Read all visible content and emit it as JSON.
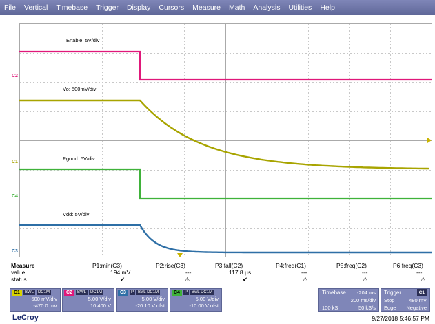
{
  "menu": [
    "File",
    "Vertical",
    "Timebase",
    "Trigger",
    "Display",
    "Cursors",
    "Measure",
    "Math",
    "Analysis",
    "Utilities",
    "Help"
  ],
  "channels": {
    "c1": {
      "marker": "C1",
      "color": "#a8a400",
      "trace_label": "Vo: 500mV/div"
    },
    "c2": {
      "marker": "C2",
      "color": "#e0187a",
      "trace_label": "Enable: 5V/div"
    },
    "c3": {
      "marker": "C3",
      "color": "#2e6fa6",
      "trace_label": "Vdd: 5V/div"
    },
    "c4": {
      "marker": "C4",
      "color": "#3fb23a",
      "trace_label": "Pgood: 5V/div"
    }
  },
  "measure": {
    "title": "Measure",
    "row_value": "value",
    "row_status": "status",
    "params": [
      {
        "name": "P1:min(C3)",
        "value": "194 mV",
        "status": "✔"
      },
      {
        "name": "P2:rise(C3)",
        "value": "---",
        "status": "⚠"
      },
      {
        "name": "P3:fall(C2)",
        "value": "117.8 µs",
        "status": "✔"
      },
      {
        "name": "P4:freq(C1)",
        "value": "---",
        "status": "⚠"
      },
      {
        "name": "P5:freq(C2)",
        "value": "---",
        "status": "⚠"
      },
      {
        "name": "P6:freq(C3)",
        "value": "---",
        "status": "⚠"
      }
    ]
  },
  "channel_boxes": [
    {
      "tag": "C1",
      "tag_color": "#d8d200",
      "tag_text_color": "#000",
      "mini1": "BWL",
      "mini2": "DC1M",
      "scale": "500 mV/div",
      "offset": "-470.0 mV"
    },
    {
      "tag": "C2",
      "tag_color": "#e0187a",
      "tag_text_color": "#fff",
      "mini1": "BWL",
      "mini2": "DC1M",
      "scale": "5.00 V/div",
      "offset": "10.400 V"
    },
    {
      "tag": "C3",
      "tag_color": "#2e6fa6",
      "tag_text_color": "#fff",
      "mini1": "P",
      "mini2": "BwL DC1M",
      "scale": "5.00 V/div",
      "offset": "-20.10 V ofst"
    },
    {
      "tag": "C4",
      "tag_color": "#3fb23a",
      "tag_text_color": "#000",
      "mini1": "P",
      "mini2": "BwL DC1M",
      "scale": "5.00 V/div",
      "offset": "-10.00 V ofst"
    }
  ],
  "timebase": {
    "title": "Timebase",
    "delay": "-204 ms",
    "per_div": "200 ms/div",
    "samples": "100 kS",
    "rate": "50 kS/s"
  },
  "trigger": {
    "title": "Trigger",
    "tag": "C1",
    "mode": "Stop",
    "level": "480 mV",
    "type": "Edge",
    "slope": "Negative"
  },
  "brand": "LeCroy",
  "timestamp": "9/27/2018 5:46:57 PM"
}
